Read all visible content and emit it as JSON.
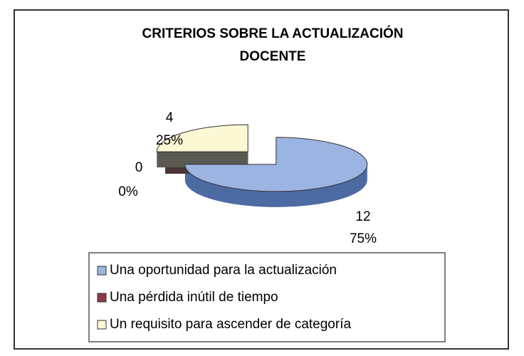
{
  "chart_data": {
    "type": "pie3d",
    "title_lines": [
      "CRITERIOS SOBRE LA  ACTUALIZACIÓN",
      "DOCENTE"
    ],
    "categories": [
      "Una oportunidad para la actualización",
      "Una pérdida inútil de tiempo",
      "Un requisito para ascender de categoría"
    ],
    "values": [
      12,
      0,
      4
    ],
    "percent_labels": [
      "75%",
      "0%",
      "25%"
    ],
    "colors": [
      "#9cb4e2",
      "#8e3a4a",
      "#fcf8d4"
    ],
    "side_colors": [
      "#4d6ba3",
      "#4a3434",
      "#5a5a52"
    ],
    "legend": "bottom"
  }
}
